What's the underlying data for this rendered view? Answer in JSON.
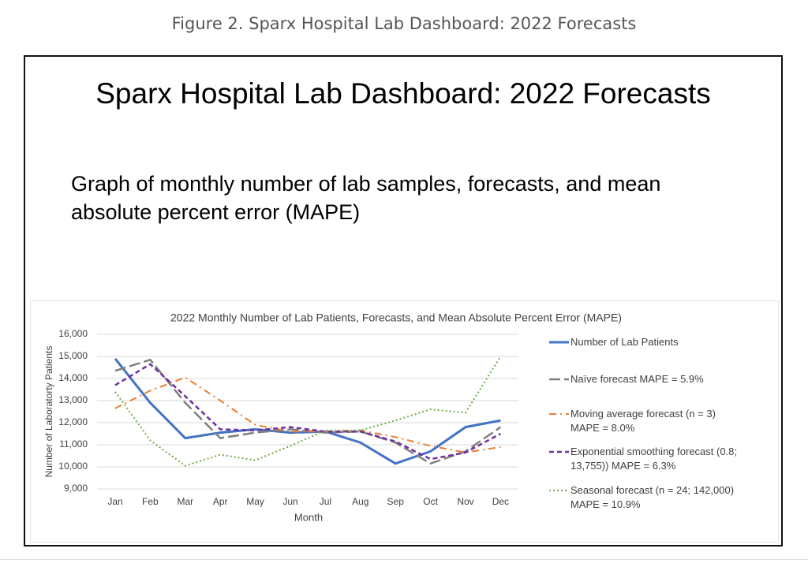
{
  "figure_caption": "Figure 2. Sparx Hospital Lab Dashboard: 2022 Forecasts",
  "header": {
    "title": "Sparx Hospital Lab Dashboard: 2022 Forecasts",
    "subtitle": "Graph of monthly number of lab samples, forecasts, and mean absolute percent error (MAPE)"
  },
  "chart_data": {
    "type": "line",
    "title": "2022 Monthly Number of Lab Patients, Forecasts, and Mean Absolute Percent Error (MAPE)",
    "x_label": "Month",
    "y_label": "Number of Laboratorty Patients",
    "categories": [
      "Jan",
      "Feb",
      "Mar",
      "Apr",
      "May",
      "Jun",
      "Jul",
      "Aug",
      "Sep",
      "Oct",
      "Nov",
      "Dec"
    ],
    "ylim": [
      9000,
      16000
    ],
    "yticks": [
      {
        "value": 9000,
        "label": "9,000"
      },
      {
        "value": 10000,
        "label": "10,000"
      },
      {
        "value": 11000,
        "label": "11,000"
      },
      {
        "value": 12000,
        "label": "12,000"
      },
      {
        "value": 13000,
        "label": "13,000"
      },
      {
        "value": 14000,
        "label": "14,000"
      },
      {
        "value": 15000,
        "label": "15,000"
      },
      {
        "value": 16000,
        "label": "16,000"
      }
    ],
    "grid": true,
    "series": [
      {
        "name": "Number of Lab Patients",
        "color": "#4472c4",
        "values": [
          14900,
          12900,
          11300,
          11550,
          11700,
          11550,
          11600,
          11100,
          10150,
          10700,
          11800,
          12100
        ]
      },
      {
        "name": "Naïve forecast MAPE = 5.9%",
        "color": "#7f7f7f",
        "values": [
          14350,
          14850,
          12900,
          11300,
          11550,
          11700,
          11550,
          11600,
          11100,
          10150,
          10700,
          11800
        ]
      },
      {
        "name": "Moving average forecast (n = 3)\nMAPE = 8.0%",
        "color": "#ed7d31",
        "values": [
          12650,
          13450,
          14050,
          13000,
          11900,
          11600,
          11600,
          11650,
          11350,
          10950,
          10650,
          10900
        ]
      },
      {
        "name": "Exponential smoothing forecast (0.8;\n13,755)) MAPE = 6.3%",
        "color": "#7030a0",
        "values": [
          13700,
          14650,
          13200,
          11700,
          11650,
          11800,
          11600,
          11600,
          11150,
          10350,
          10650,
          11500
        ]
      },
      {
        "name": "Seasonal forecast (n = 24; 142,000)\nMAPE = 10.9%",
        "color": "#70ad47",
        "values": [
          13400,
          11200,
          10050,
          10550,
          10300,
          10950,
          11650,
          11650,
          12100,
          12600,
          12450,
          15000
        ]
      }
    ]
  }
}
